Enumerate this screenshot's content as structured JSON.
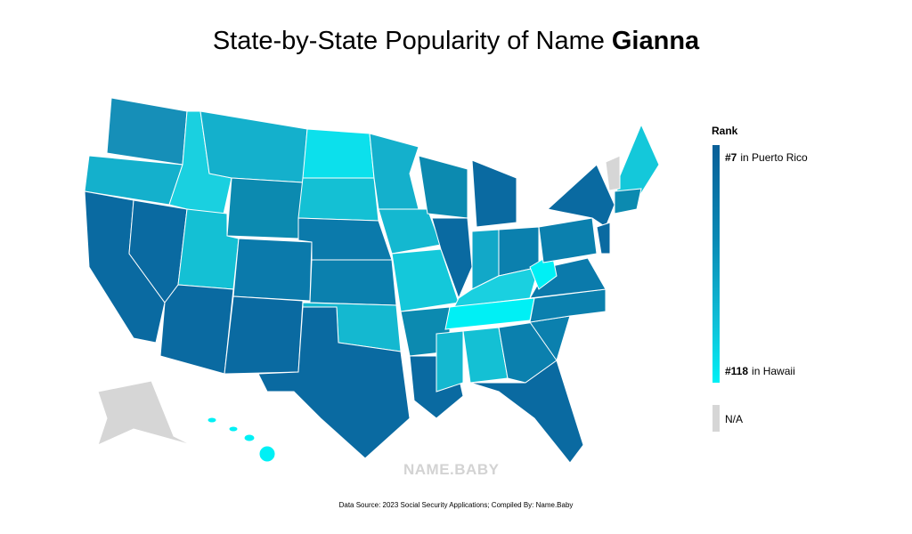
{
  "title": {
    "prefix": "State-by-State Popularity of Name",
    "name": "Gianna"
  },
  "legend": {
    "title": "Rank",
    "top": {
      "rank": "#7",
      "place": "in Puerto Rico"
    },
    "bottom": {
      "rank": "#118",
      "place": "in Hawaii"
    },
    "na": "N/A"
  },
  "watermark": "NAME.BABY",
  "source": "Data Source: 2023 Social Security Applications; Compiled By: Name.Baby"
}
